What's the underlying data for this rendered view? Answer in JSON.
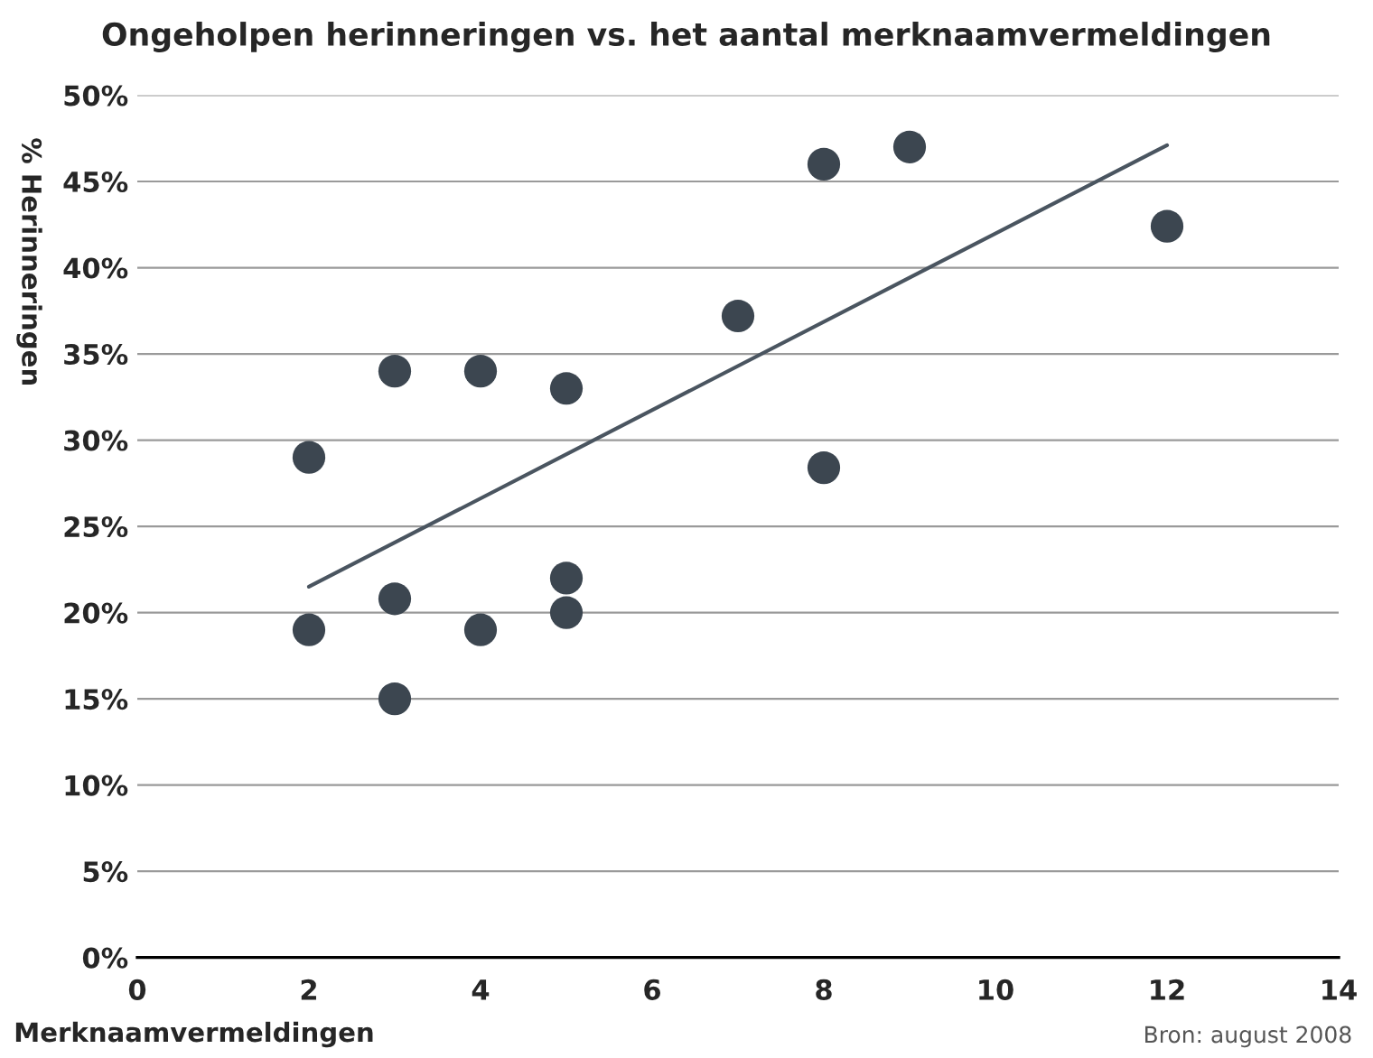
{
  "chart_data": {
    "type": "scatter",
    "title": "Ongeholpen herinneringen vs. het aantal merknaamvermeldingen",
    "xlabel": "Merknaamvermeldingen",
    "ylabel": "% Herinneringen",
    "annotations": [
      "Bron: august 2008"
    ],
    "series": [
      {
        "color": "#3c4650",
        "marker": "circle",
        "x": [
          2,
          2,
          3,
          3,
          3,
          4,
          4,
          5,
          5,
          5,
          7,
          8,
          8,
          9,
          12
        ],
        "values": [
          29,
          19,
          34,
          20.8,
          15,
          34,
          19,
          33,
          22,
          20,
          37.2,
          46,
          28.4,
          47,
          42.4
        ]
      },
      {
        "type": "line",
        "color": "#4a5560",
        "x": [
          2,
          12
        ],
        "values": [
          21.5,
          47.1
        ]
      }
    ],
    "xlim": [
      0,
      14
    ],
    "xticks": [
      0,
      2,
      4,
      6,
      8,
      10,
      12,
      14
    ],
    "ylim": [
      0,
      50
    ],
    "yticks": [
      {
        "value": 0,
        "label": "0%"
      },
      {
        "value": 5,
        "label": "5%"
      },
      {
        "value": 10,
        "label": "10%"
      },
      {
        "value": 15,
        "label": "15%"
      },
      {
        "value": 20,
        "label": "20%"
      },
      {
        "value": 25,
        "label": "25%"
      },
      {
        "value": 30,
        "label": "30%"
      },
      {
        "value": 35,
        "label": "35%"
      },
      {
        "value": 40,
        "label": "40%"
      },
      {
        "value": 45,
        "label": "45%"
      },
      {
        "value": 50,
        "label": "50%"
      }
    ],
    "grid": "y",
    "legend": false
  }
}
